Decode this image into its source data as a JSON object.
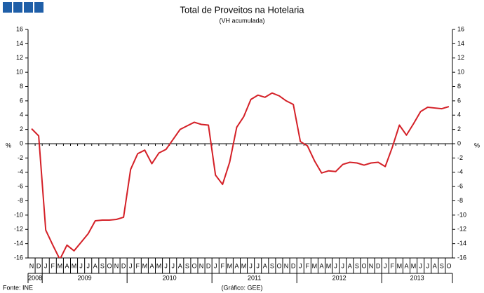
{
  "chart_data": {
    "type": "line",
    "title": "Total de Proveitos na Hotelaria",
    "subtitle": "(VH acumulada)",
    "y_label": "%",
    "y2_label": "%",
    "source": "Fonte: INE",
    "credit": "(Gráfico: GEE)",
    "categories": [
      "N",
      "D",
      "J",
      "F",
      "M",
      "A",
      "M",
      "J",
      "J",
      "A",
      "S",
      "O",
      "N",
      "D",
      "J",
      "F",
      "M",
      "A",
      "M",
      "J",
      "J",
      "A",
      "S",
      "O",
      "N",
      "D",
      "J",
      "F",
      "M",
      "A",
      "M",
      "J",
      "J",
      "A",
      "S",
      "O",
      "N",
      "D",
      "J",
      "F",
      "M",
      "A",
      "M",
      "J",
      "J",
      "A",
      "S",
      "O",
      "N",
      "D",
      "J",
      "F",
      "M",
      "A",
      "M",
      "J",
      "J",
      "A",
      "S",
      "O"
    ],
    "year_labels": [
      "2008",
      "2009",
      "2010",
      "2011",
      "2012",
      "2013"
    ],
    "values": [
      2.1,
      1.1,
      -12.1,
      -14.2,
      -16.2,
      -14.2,
      -15.0,
      -13.8,
      -12.6,
      -10.8,
      -10.7,
      -10.7,
      -10.6,
      -10.3,
      -3.6,
      -1.4,
      -0.9,
      -2.8,
      -1.3,
      -0.8,
      0.6,
      2.0,
      2.5,
      3.0,
      2.7,
      2.6,
      -4.4,
      -5.7,
      -2.6,
      2.3,
      3.8,
      6.2,
      6.8,
      6.5,
      7.1,
      6.7,
      6.0,
      5.5,
      0.3,
      -0.3,
      -2.4,
      -4.1,
      -3.8,
      -3.9,
      -2.9,
      -2.6,
      -2.7,
      -3.0,
      -2.7,
      -2.6,
      -3.2,
      -0.5,
      2.6,
      1.2,
      2.8,
      4.5,
      5.1,
      5.0,
      4.9,
      5.2
    ],
    "color": "#d42027",
    "ylim": [
      -16,
      16
    ],
    "yticks": [
      -16,
      -14,
      -12,
      -10,
      -8,
      -6,
      -4,
      -2,
      0,
      2,
      4,
      6,
      8,
      10,
      12,
      14,
      16
    ],
    "y2lim": [
      -16,
      16
    ],
    "y2ticks": [
      -16,
      -14,
      -12,
      -10,
      -8,
      -6,
      -4,
      -2,
      0,
      2,
      4,
      6,
      8,
      10,
      12,
      14,
      16
    ]
  }
}
